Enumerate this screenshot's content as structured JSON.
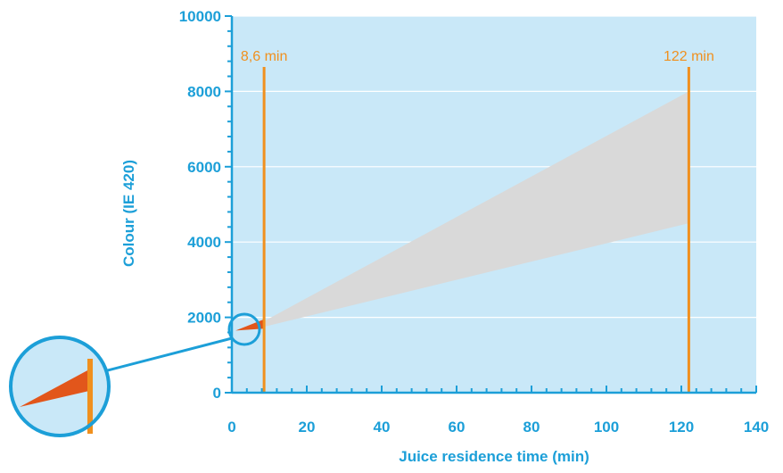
{
  "chart_data": {
    "type": "area",
    "xlabel": "Juice residence time (min)",
    "ylabel": "Colour (IE 420)",
    "xlim": [
      0,
      140
    ],
    "ylim": [
      0,
      10000
    ],
    "x_ticks": [
      0,
      20,
      40,
      60,
      80,
      100,
      120,
      140
    ],
    "y_ticks": [
      0,
      2000,
      4000,
      6000,
      8000,
      10000
    ],
    "grid": "horizontal",
    "markers": [
      {
        "x": 8.6,
        "label": "8,6 min"
      },
      {
        "x": 122,
        "label": "122 min"
      }
    ],
    "bands": [
      {
        "x": [
          1,
          8.6,
          122
        ],
        "upper": [
          1650,
          1900,
          8000
        ],
        "lower": [
          1650,
          1750,
          4500
        ],
        "color": "#d9d9d9"
      },
      {
        "x": [
          1,
          8.6
        ],
        "upper": [
          1650,
          1950
        ],
        "lower": [
          1650,
          1700
        ],
        "color": "#e2561b"
      }
    ],
    "magnifier": true
  },
  "colors": {
    "accent": "#1c9fd8",
    "plot_background": "#c9e8f8",
    "marker_line": "#f0901e",
    "band_fill": "#d9d9d9",
    "highlight": "#e2561b"
  }
}
